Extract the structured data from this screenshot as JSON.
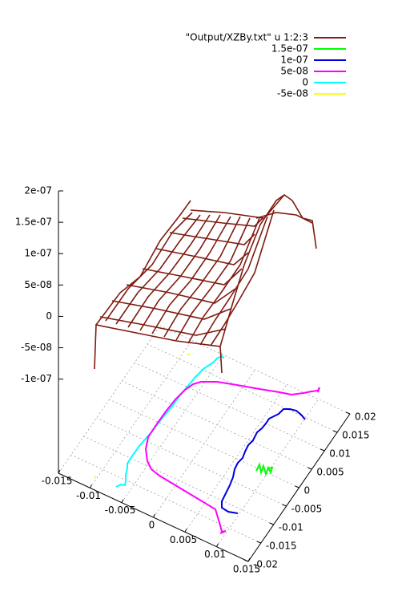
{
  "chart_data": {
    "type": "surface3d",
    "series": [
      {
        "name": "\"Output/XZBy.txt\" u 1:2:3",
        "color": "#8b1a0e"
      },
      {
        "name": "1.5e-07",
        "color": "#00ff00"
      },
      {
        "name": "1e-07",
        "color": "#0000e0"
      },
      {
        "name": "5e-08",
        "color": "#ff00ff"
      },
      {
        "name": "0",
        "color": "#00ffff"
      },
      {
        "name": "-5e-08",
        "color": "#ffff00"
      }
    ],
    "xlim": [
      -0.015,
      0.015
    ],
    "xticks": [
      -0.015,
      -0.01,
      -0.005,
      0,
      0.005,
      0.01,
      0.015
    ],
    "ylim": [
      -0.02,
      0.02
    ],
    "yticks": [
      -0.02,
      -0.015,
      -0.01,
      -0.005,
      0,
      0.005,
      0.01,
      0.015,
      0.02
    ],
    "zlim": [
      -2.5e-07,
      2e-07
    ],
    "zticks": [
      {
        "value": 2e-07,
        "label": "2e-07"
      },
      {
        "value": 1.5e-07,
        "label": "1.5e-07"
      },
      {
        "value": 1e-07,
        "label": "1e-07"
      },
      {
        "value": 5e-08,
        "label": "5e-08"
      },
      0,
      {
        "value": -5e-08,
        "label": "-5e-08"
      },
      {
        "value": -1e-07,
        "label": "-1e-07"
      }
    ],
    "grid": true
  }
}
